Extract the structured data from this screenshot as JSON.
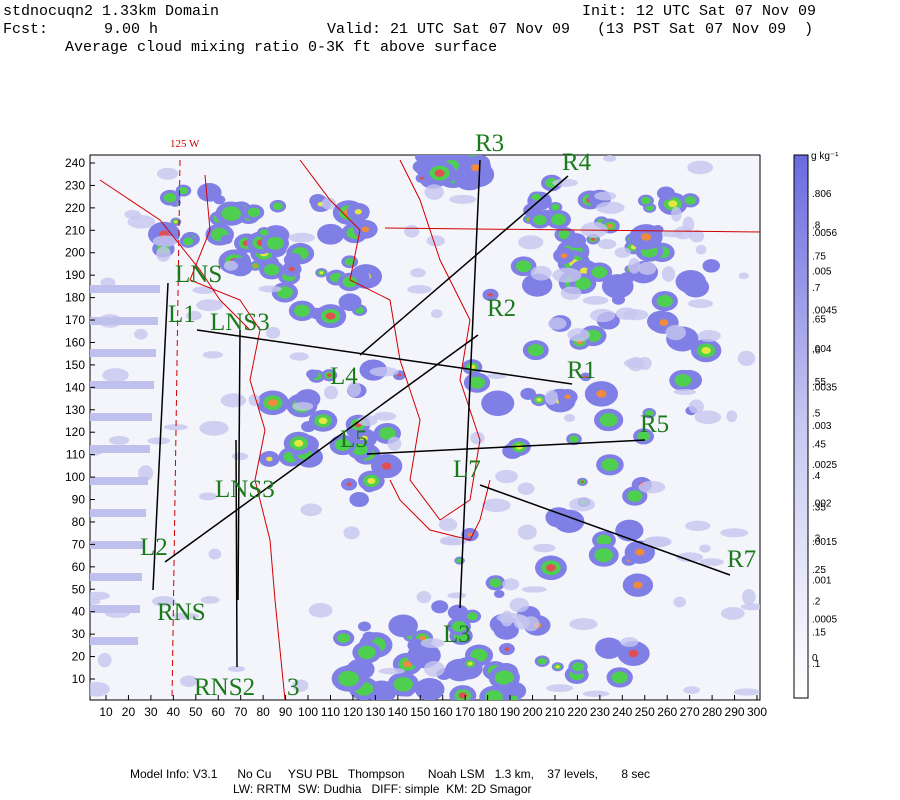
{
  "header": {
    "domain": "stdnocuqn2 1.33km Domain",
    "init": "Init: 12 UTC Sat 07 Nov 09",
    "fcst_label": "Fcst:",
    "fcst": "9.00 h",
    "valid": "Valid: 21 UTC Sat 07 Nov 09   (13 PST Sat 07 Nov 09  )",
    "field": "Average cloud mixing ratio 0-3K ft above surface"
  },
  "map": {
    "longitude_label": "125 W",
    "x_axis": [
      10,
      20,
      30,
      40,
      50,
      60,
      70,
      80,
      90,
      100,
      110,
      120,
      130,
      140,
      150,
      160,
      170,
      180,
      190,
      200,
      210,
      220,
      230,
      240,
      250,
      260,
      270,
      280,
      290,
      300
    ],
    "y_axis": [
      10,
      20,
      30,
      40,
      50,
      60,
      70,
      80,
      90,
      100,
      110,
      120,
      130,
      140,
      150,
      160,
      170,
      180,
      190,
      200,
      210,
      220,
      230,
      240
    ],
    "section_labels": [
      "LNS",
      "L1",
      "LNS3",
      "L4",
      "L5",
      "LNS3",
      "L2",
      "RNS",
      "RNS2",
      "3",
      "R3",
      "R4",
      "R2",
      "R1",
      "R5",
      "L7",
      "L3",
      "R7"
    ]
  },
  "colorbar": {
    "unit": "g kg⁻¹",
    "labels_a": [
      ".806",
      ".8",
      ".75",
      ".7",
      ".65",
      ".6",
      ".55",
      ".5",
      ".45",
      ".4",
      ".35",
      ".3",
      ".25",
      ".2",
      ".15",
      ".1"
    ],
    "labels_b": [
      ".0056",
      ".005",
      ".0045",
      ".004",
      ".0035",
      ".003",
      ".0025",
      ".002",
      ".0015",
      ".001",
      ".0005",
      "0"
    ]
  },
  "footer": {
    "line1": "Model Info: V3.1      No Cu     YSU PBL   Thompson       Noah LSM   1.3 km,    37 levels,       8 sec",
    "line2": "LW: RRTM  SW: Dudhia   DIFF: simple  KM: 2D Smagor"
  }
}
